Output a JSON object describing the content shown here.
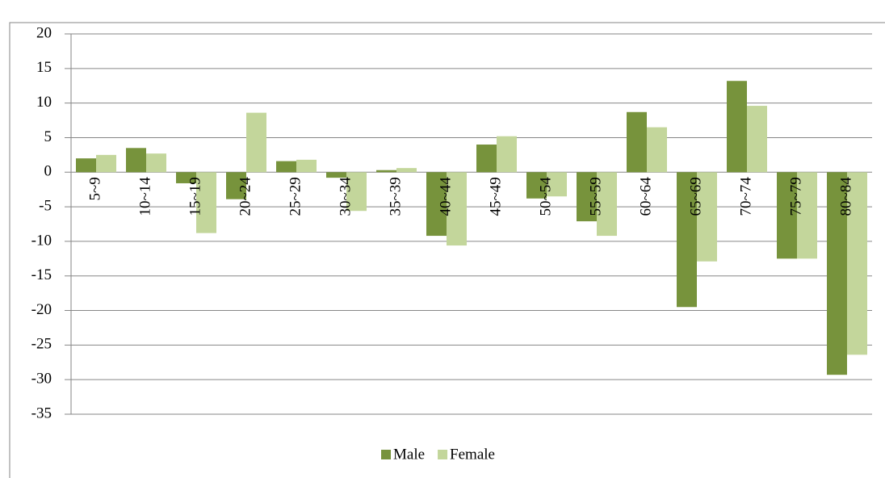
{
  "chart_data": {
    "type": "bar",
    "categories": [
      "5~9",
      "10~14",
      "15~19",
      "20~24",
      "25~29",
      "30~34",
      "35~39",
      "40~44",
      "45~49",
      "50~54",
      "55~59",
      "60~64",
      "65~69",
      "70~74",
      "75~79",
      "80~84"
    ],
    "series": [
      {
        "name": "Male",
        "color": "#77933c",
        "values": [
          2.0,
          3.5,
          -1.6,
          -3.9,
          1.6,
          -0.8,
          0.3,
          -9.2,
          4.0,
          -3.8,
          -7.1,
          8.7,
          -19.5,
          13.2,
          -12.5,
          -29.3
        ]
      },
      {
        "name": "Female",
        "color": "#c3d69b",
        "values": [
          2.5,
          2.7,
          -8.8,
          8.6,
          1.8,
          -5.6,
          0.6,
          -10.6,
          5.2,
          -3.5,
          -9.2,
          6.5,
          -12.9,
          9.6,
          -12.5,
          -26.4
        ]
      }
    ],
    "ylim": [
      -35,
      20
    ],
    "yticks": [
      -35,
      -30,
      -25,
      -20,
      -15,
      -10,
      -5,
      0,
      5,
      10,
      15,
      20
    ],
    "grid": true,
    "legend": "bottom"
  }
}
